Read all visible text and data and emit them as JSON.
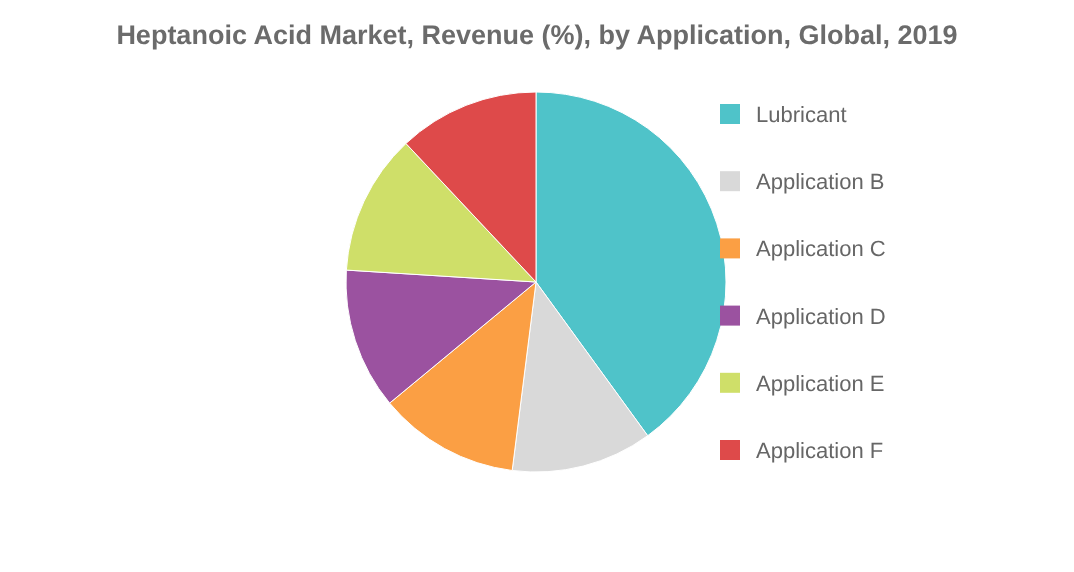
{
  "chart_data": {
    "type": "pie",
    "title": "Heptanoic Acid Market, Revenue (%), by Application, Global, 2019",
    "categories": [
      "Lubricant",
      "Application B",
      "Application C",
      "Application D",
      "Application E",
      "Application F"
    ],
    "values": [
      40,
      12,
      12,
      12,
      12,
      12
    ],
    "colors": [
      "#4fc3c9",
      "#d9d9d9",
      "#fb9f44",
      "#9b52a0",
      "#cfdf69",
      "#de4a4a"
    ],
    "legend": "right"
  }
}
